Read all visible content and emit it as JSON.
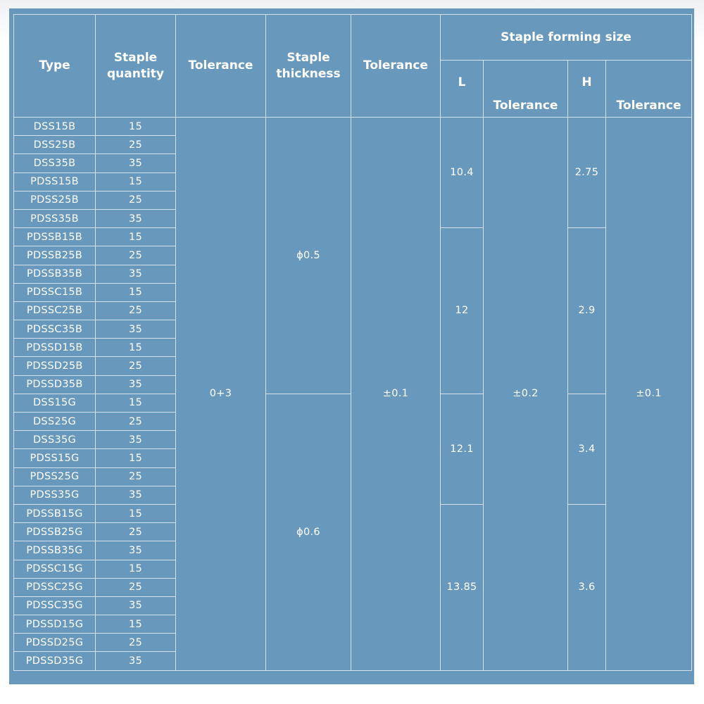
{
  "headers": {
    "type": "Type",
    "quantity": "Staple quantity",
    "tolerance1": "Tolerance",
    "thickness": "Staple thickness",
    "tolerance2": "Tolerance",
    "forming_size": "Staple forming size",
    "L": "L",
    "tolerance_L": "Tolerance",
    "H": "H",
    "tolerance_H": "Tolerance"
  },
  "rows": [
    {
      "type": "DSS15B",
      "qty": "15"
    },
    {
      "type": "DSS25B",
      "qty": "25"
    },
    {
      "type": "DSS35B",
      "qty": "35"
    },
    {
      "type": "PDSS15B",
      "qty": "15"
    },
    {
      "type": "PDSS25B",
      "qty": "25"
    },
    {
      "type": "PDSS35B",
      "qty": "35"
    },
    {
      "type": "PDSSB15B",
      "qty": "15"
    },
    {
      "type": "PDSSB25B",
      "qty": "25"
    },
    {
      "type": "PDSSB35B",
      "qty": "35"
    },
    {
      "type": "PDSSC15B",
      "qty": "15"
    },
    {
      "type": "PDSSC25B",
      "qty": "25"
    },
    {
      "type": "PDSSC35B",
      "qty": "35"
    },
    {
      "type": "PDSSD15B",
      "qty": "15"
    },
    {
      "type": "PDSSD25B",
      "qty": "25"
    },
    {
      "type": "PDSSD35B",
      "qty": "35"
    },
    {
      "type": "DSS15G",
      "qty": "15"
    },
    {
      "type": "DSS25G",
      "qty": "25"
    },
    {
      "type": "DSS35G",
      "qty": "35"
    },
    {
      "type": "PDSS15G",
      "qty": "15"
    },
    {
      "type": "PDSS25G",
      "qty": "25"
    },
    {
      "type": "PDSS35G",
      "qty": "35"
    },
    {
      "type": "PDSSB15G",
      "qty": "15"
    },
    {
      "type": "PDSSB25G",
      "qty": "25"
    },
    {
      "type": "PDSSB35G",
      "qty": "35"
    },
    {
      "type": "PDSSC15G",
      "qty": "15"
    },
    {
      "type": "PDSSC25G",
      "qty": "25"
    },
    {
      "type": "PDSSC35G",
      "qty": "35"
    },
    {
      "type": "PDSSD15G",
      "qty": "15"
    },
    {
      "type": "PDSSD25G",
      "qty": "25"
    },
    {
      "type": "PDSSD35G",
      "qty": "35"
    }
  ],
  "merged": {
    "quantity_tolerance": {
      "value": "0+3",
      "start": 0,
      "span": 30
    },
    "thickness": [
      {
        "value": "ϕ0.5",
        "start": 0,
        "span": 15
      },
      {
        "value": "ϕ0.6",
        "start": 15,
        "span": 15
      }
    ],
    "thickness_tolerance": {
      "value": "±0.1",
      "start": 0,
      "span": 30
    },
    "L": [
      {
        "value": "10.4",
        "start": 0,
        "span": 6
      },
      {
        "value": "12",
        "start": 6,
        "span": 9
      },
      {
        "value": "12.1",
        "start": 15,
        "span": 6
      },
      {
        "value": "13.85",
        "start": 21,
        "span": 9
      }
    ],
    "L_tolerance": {
      "value": "±0.2",
      "start": 0,
      "span": 30
    },
    "H": [
      {
        "value": "2.75",
        "start": 0,
        "span": 6
      },
      {
        "value": "2.9",
        "start": 6,
        "span": 9
      },
      {
        "value": "3.4",
        "start": 15,
        "span": 6
      },
      {
        "value": "3.6",
        "start": 21,
        "span": 9
      }
    ],
    "H_tolerance": {
      "value": "±0.1",
      "start": 0,
      "span": 30
    }
  },
  "colors": {
    "table_bg": "#6899bc",
    "border": "#d3e2ee",
    "text": "#ffffff"
  }
}
